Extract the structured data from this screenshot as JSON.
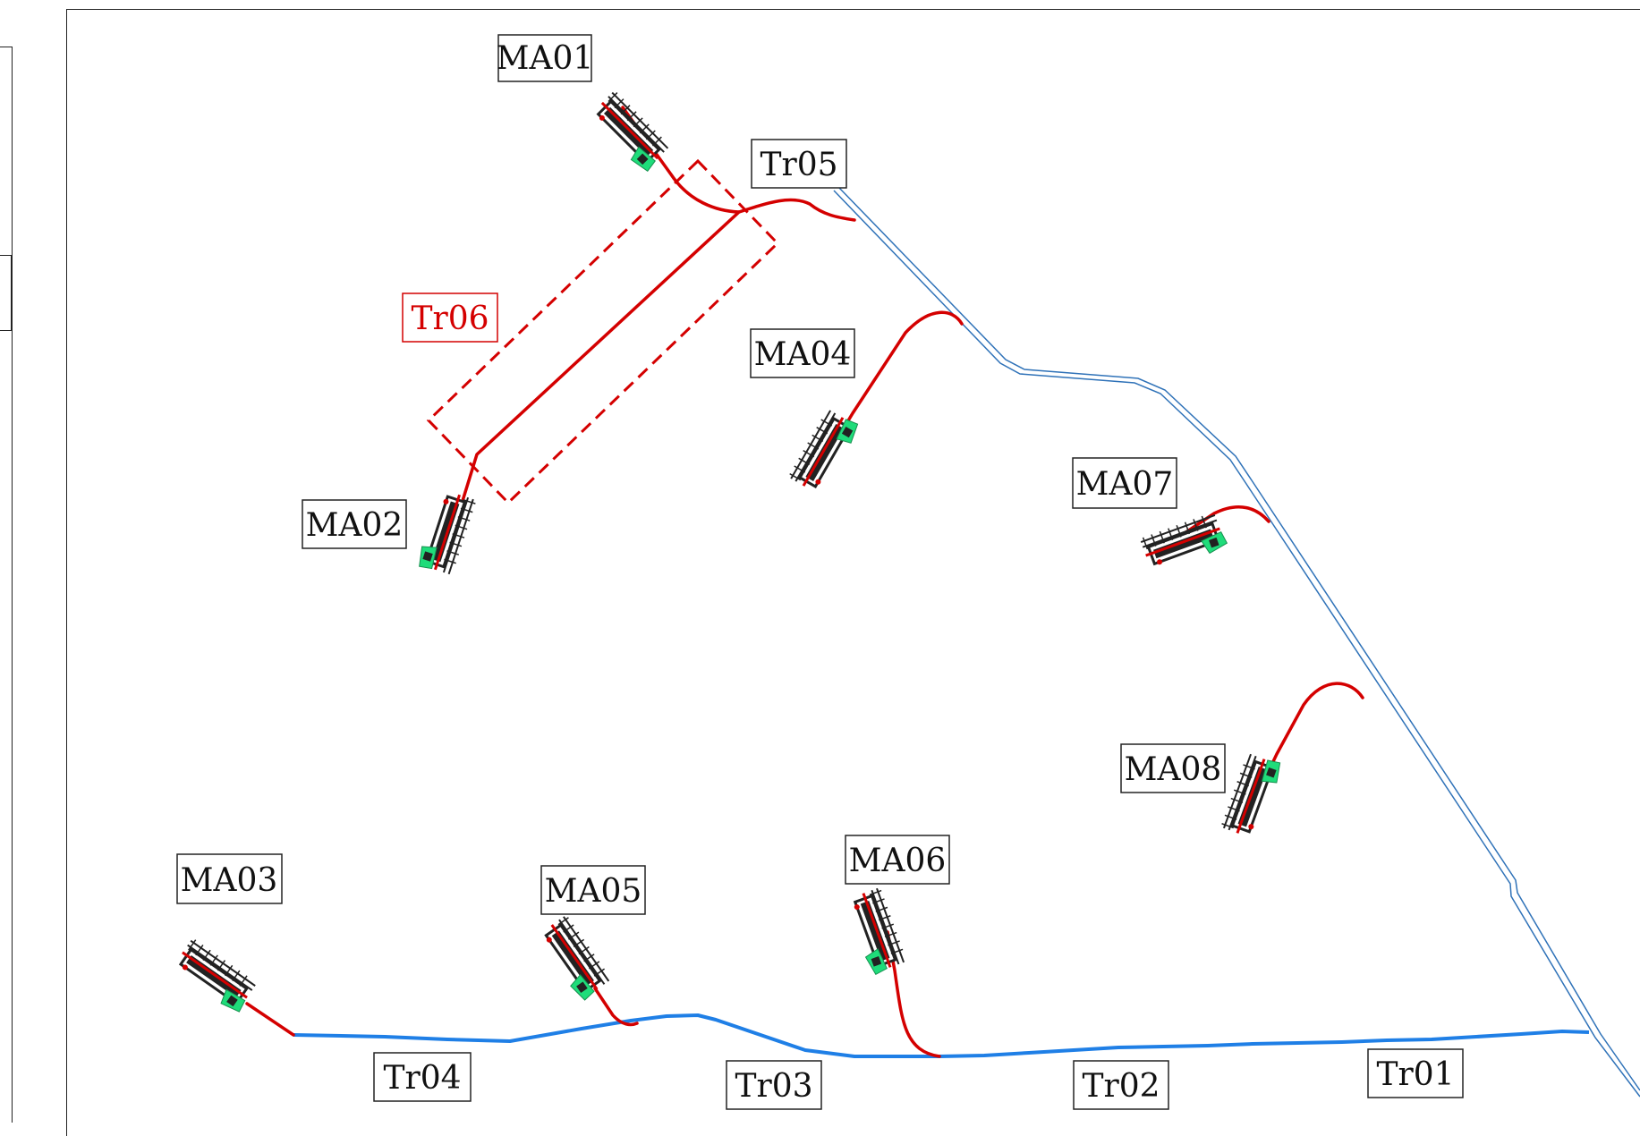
{
  "diagram": {
    "labels": {
      "MA01": "MA01",
      "MA02": "MA02",
      "MA03": "MA03",
      "MA04": "MA04",
      "MA05": "MA05",
      "MA06": "MA06",
      "MA07": "MA07",
      "MA08": "MA08",
      "Tr01": "Tr01",
      "Tr02": "Tr02",
      "Tr03": "Tr03",
      "Tr04": "Tr04",
      "Tr05": "Tr05",
      "Tr06": "Tr06"
    },
    "colors": {
      "red_route": "#d40000",
      "blue_route": "#1f7fe6",
      "double_route": "#2f72b8",
      "label_border": "#222222",
      "highlight_label": "#d40000",
      "machine_body": "#222222",
      "machine_cab": "#1fdc7a"
    }
  }
}
